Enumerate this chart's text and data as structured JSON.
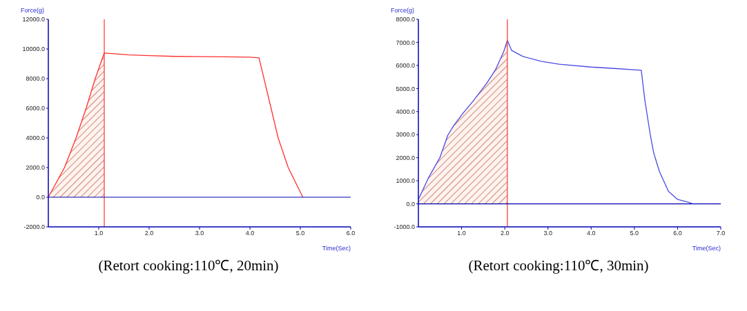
{
  "chart_data": [
    {
      "type": "line",
      "title": "(Retort cooking:110℃, 20min)",
      "xlabel": "Time(Sec)",
      "ylabel": "Force(g)",
      "xlim": [
        0,
        6
      ],
      "ylim": [
        -2000,
        12000
      ],
      "xticks": [
        {
          "value": 1,
          "label": "1.0"
        },
        {
          "value": 2,
          "label": "2.0"
        },
        {
          "value": 3,
          "label": "3.0"
        },
        {
          "value": 4,
          "label": "4.0"
        },
        {
          "value": 5,
          "label": "5.0"
        },
        {
          "value": 6,
          "label": "6.0"
        }
      ],
      "yticks": [
        {
          "value": -2000,
          "label": "-2000.0"
        },
        {
          "value": 0,
          "label": "0.0"
        },
        {
          "value": 2000,
          "label": "2000.0"
        },
        {
          "value": 4000,
          "label": "4000.0"
        },
        {
          "value": 6000,
          "label": "6000.0"
        },
        {
          "value": 8000,
          "label": "8000.0"
        },
        {
          "value": 10000,
          "label": "10000.0"
        },
        {
          "value": 12000,
          "label": "12000.0"
        }
      ],
      "series": [
        {
          "type": "area",
          "color": "#b03a2e",
          "x": [
            0,
            0.32,
            0.55,
            0.75,
            0.93,
            1.11
          ],
          "values": [
            0,
            2000,
            4000,
            6000,
            8000,
            9730
          ]
        },
        {
          "color": "#ff3030",
          "x": [
            0,
            0.32,
            0.55,
            0.75,
            0.93,
            1.11,
            1.3,
            1.6,
            2.0,
            2.5,
            3.0,
            3.5,
            4.0,
            4.18,
            4.42,
            4.56,
            4.76,
            5.05
          ],
          "values": [
            0,
            2000,
            4000,
            6000,
            8000,
            9730,
            9680,
            9600,
            9550,
            9500,
            9480,
            9470,
            9450,
            9400,
            6000,
            4000,
            2000,
            0
          ]
        }
      ],
      "ref_lines": [
        {
          "axis": "x",
          "value": 1.11,
          "color": "#ff3030"
        },
        {
          "axis": "y",
          "value": 0,
          "color": "#0000b0"
        }
      ],
      "grid": false,
      "marker": "none",
      "line_style": "solid"
    },
    {
      "type": "line",
      "title": "(Retort cooking:110℃, 30min)",
      "xlabel": "Time(Sec)",
      "ylabel": "Force(g)",
      "xlim": [
        0,
        7
      ],
      "ylim": [
        -1000,
        8000
      ],
      "xticks": [
        {
          "value": 1,
          "label": "1.0"
        },
        {
          "value": 2,
          "label": "2.0"
        },
        {
          "value": 3,
          "label": "3.0"
        },
        {
          "value": 4,
          "label": "4.0"
        },
        {
          "value": 5,
          "label": "5.0"
        },
        {
          "value": 6,
          "label": "6.0"
        },
        {
          "value": 7,
          "label": "7.0"
        }
      ],
      "yticks": [
        {
          "value": -1000,
          "label": "-1000.0"
        },
        {
          "value": 0,
          "label": "0.0"
        },
        {
          "value": 1000,
          "label": "1000.0"
        },
        {
          "value": 2000,
          "label": "2000.0"
        },
        {
          "value": 3000,
          "label": "3000.0"
        },
        {
          "value": 4000,
          "label": "4000.0"
        },
        {
          "value": 5000,
          "label": "5000.0"
        },
        {
          "value": 6000,
          "label": "6000.0"
        },
        {
          "value": 7000,
          "label": "7000.0"
        },
        {
          "value": 8000,
          "label": "8000.0"
        }
      ],
      "series": [
        {
          "type": "area",
          "color": "#b03a2e",
          "x": [
            0,
            0.13,
            0.24,
            0.5,
            0.68,
            0.82,
            1.03,
            1.26,
            1.58,
            1.79,
            1.97,
            2.06
          ],
          "values": [
            190,
            710,
            1150,
            2010,
            2970,
            3400,
            3920,
            4440,
            5220,
            5830,
            6570,
            7090
          ]
        },
        {
          "color": "#4a4ae6",
          "x": [
            0,
            0.13,
            0.24,
            0.5,
            0.68,
            0.82,
            1.03,
            1.26,
            1.58,
            1.79,
            1.97,
            2.06,
            2.16,
            2.42,
            2.84,
            3.26,
            4.0,
            4.53,
            5.16,
            5.24,
            5.37,
            5.45,
            5.58,
            5.79,
            6.0,
            6.21,
            6.33
          ],
          "values": [
            190,
            710,
            1150,
            2010,
            2970,
            3400,
            3920,
            4440,
            5220,
            5830,
            6570,
            7090,
            6650,
            6390,
            6180,
            6050,
            5930,
            5870,
            5790,
            4530,
            2970,
            2190,
            1400,
            540,
            190,
            90,
            20
          ]
        }
      ],
      "ref_lines": [
        {
          "axis": "x",
          "value": 2.06,
          "color": "#ff3030"
        },
        {
          "axis": "y",
          "value": 0,
          "color": "#0000b0"
        }
      ],
      "grid": false,
      "marker": "none",
      "line_style": "solid"
    }
  ]
}
